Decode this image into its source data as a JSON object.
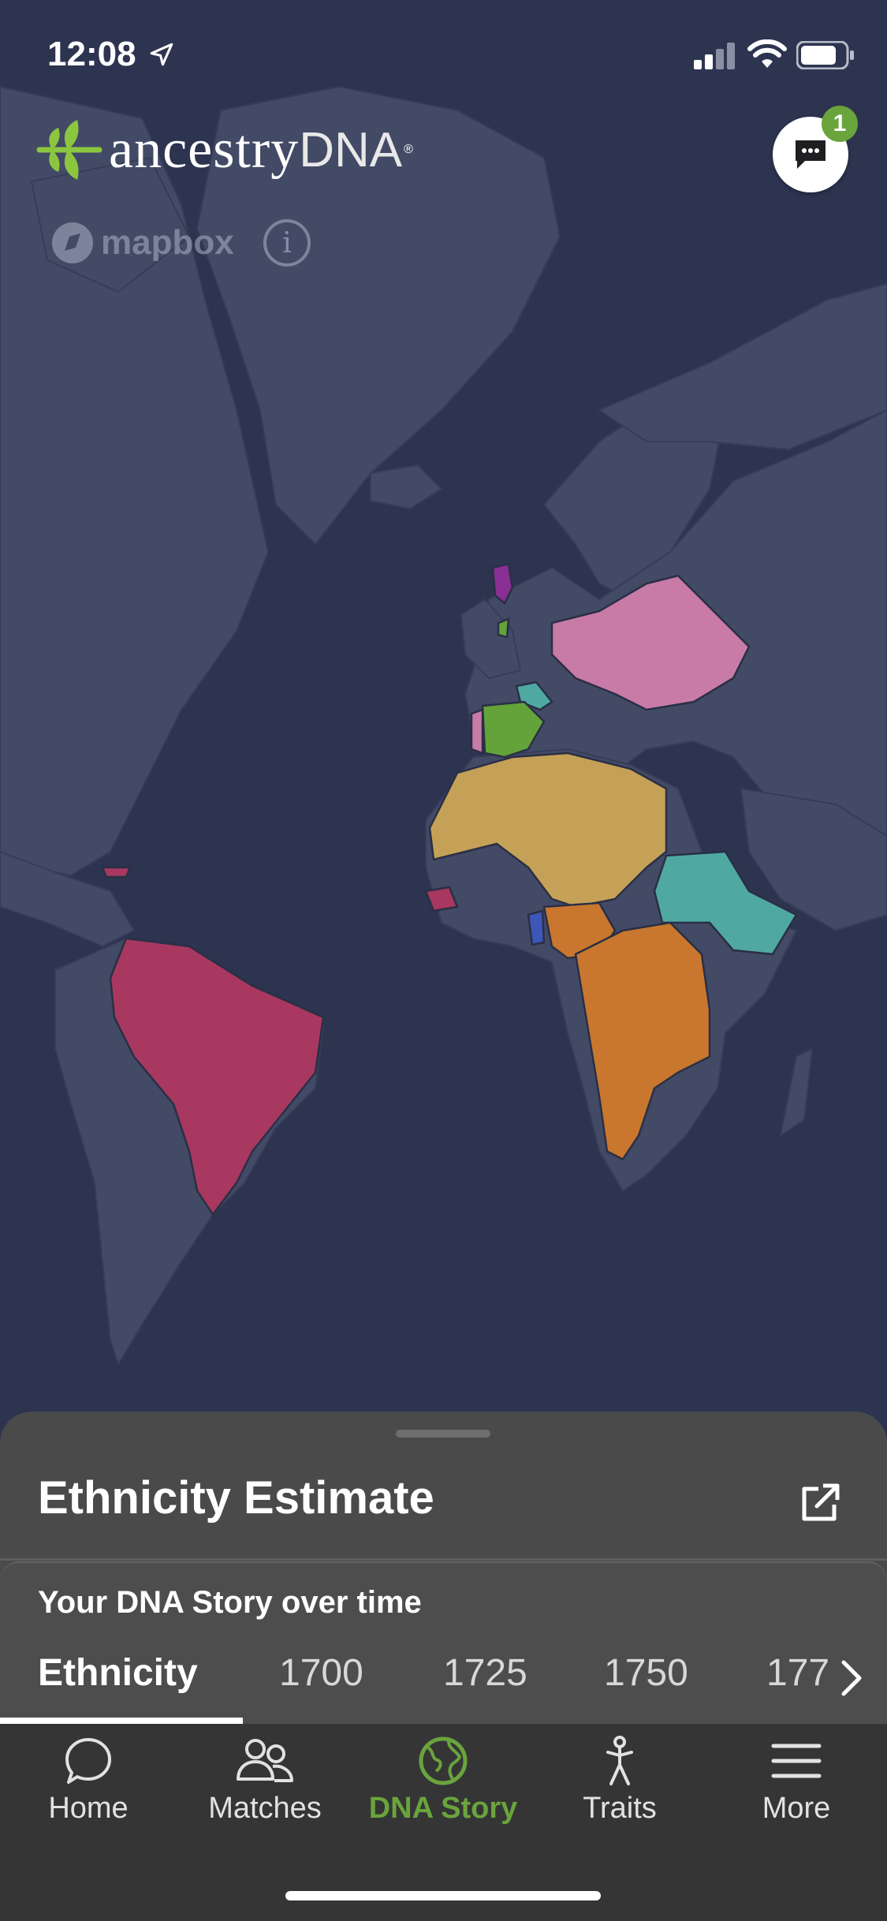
{
  "status_bar": {
    "time": "12:08"
  },
  "brand": {
    "name_main": "ancestry",
    "name_suffix": "DNA",
    "registered": "®"
  },
  "chat": {
    "badge_count": "1"
  },
  "map_attribution": {
    "provider": "mapbox",
    "info_label": "i"
  },
  "region_colors": {
    "purple": "#8a2f94",
    "green": "#63a33a",
    "pink": "#c87ba6",
    "teal": "#4fa9a2",
    "sand": "#c5a157",
    "orange": "#c9772e",
    "crimson": "#a8385f",
    "blue": "#3d57b8"
  },
  "sheet": {
    "title": "Ethnicity Estimate",
    "story_title": "Your DNA Story over time",
    "tabs": [
      {
        "label": "Ethnicity",
        "active": true
      },
      {
        "label": "1700"
      },
      {
        "label": "1725"
      },
      {
        "label": "1750"
      },
      {
        "label": "177"
      }
    ]
  },
  "tabbar": {
    "items": [
      {
        "label": "Home",
        "icon": "chat-bubble-icon"
      },
      {
        "label": "Matches",
        "icon": "people-icon"
      },
      {
        "label": "DNA Story",
        "icon": "globe-icon",
        "active": true
      },
      {
        "label": "Traits",
        "icon": "person-icon"
      },
      {
        "label": "More",
        "icon": "menu-icon"
      }
    ],
    "accent": "#6aa43c"
  }
}
